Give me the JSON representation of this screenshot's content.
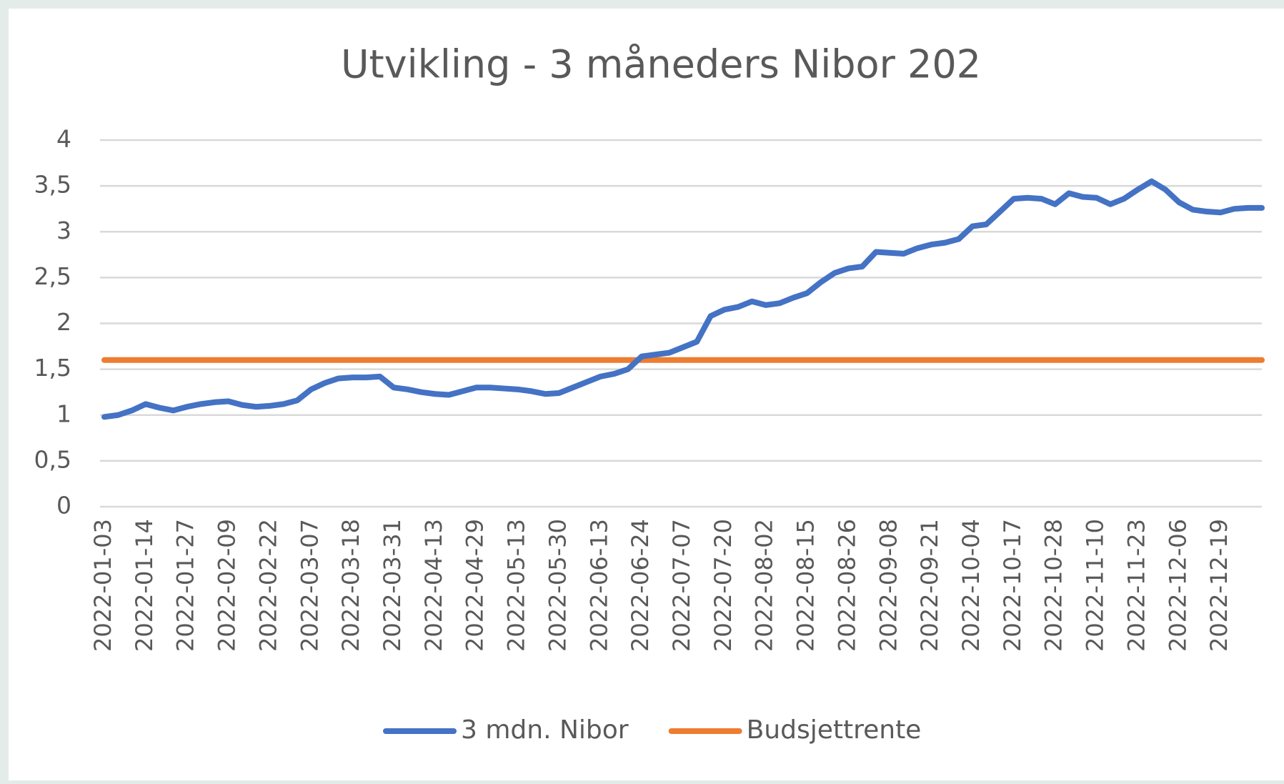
{
  "chart_data": {
    "type": "line",
    "title": "Utvikling - 3 måneders Nibor 202",
    "categories": [
      "2022-01-03",
      null,
      null,
      "2022-01-14",
      null,
      null,
      "2022-01-27",
      null,
      null,
      "2022-02-09",
      null,
      null,
      "2022-02-22",
      null,
      null,
      "2022-03-07",
      null,
      null,
      "2022-03-18",
      null,
      null,
      "2022-03-31",
      null,
      null,
      "2022-04-13",
      null,
      null,
      "2022-04-29",
      null,
      null,
      "2022-05-13",
      null,
      null,
      "2022-05-30",
      null,
      null,
      "2022-06-13",
      null,
      null,
      "2022-06-24",
      null,
      null,
      "2022-07-07",
      null,
      null,
      "2022-07-20",
      null,
      null,
      "2022-08-02",
      null,
      null,
      "2022-08-15",
      null,
      null,
      "2022-08-26",
      null,
      null,
      "2022-09-08",
      null,
      null,
      "2022-09-21",
      null,
      null,
      "2022-10-04",
      null,
      null,
      "2022-10-17",
      null,
      null,
      "2022-10-28",
      null,
      null,
      "2022-11-10",
      null,
      null,
      "2022-11-23",
      null,
      null,
      "2022-12-06",
      null,
      null,
      "2022-12-19",
      null,
      null,
      null
    ],
    "series": [
      {
        "name": "3 mdn. Nibor",
        "color": "#4472c4",
        "values": [
          0.98,
          1.0,
          1.05,
          1.12,
          1.08,
          1.05,
          1.09,
          1.12,
          1.14,
          1.15,
          1.11,
          1.09,
          1.1,
          1.12,
          1.16,
          1.28,
          1.35,
          1.4,
          1.41,
          1.41,
          1.42,
          1.3,
          1.28,
          1.25,
          1.23,
          1.22,
          1.26,
          1.3,
          1.3,
          1.29,
          1.28,
          1.26,
          1.23,
          1.24,
          1.3,
          1.36,
          1.42,
          1.45,
          1.5,
          1.64,
          1.66,
          1.68,
          1.74,
          1.8,
          2.08,
          2.15,
          2.18,
          2.24,
          2.2,
          2.22,
          2.28,
          2.33,
          2.45,
          2.55,
          2.6,
          2.62,
          2.78,
          2.77,
          2.76,
          2.82,
          2.86,
          2.88,
          2.92,
          3.06,
          3.08,
          3.22,
          3.36,
          3.37,
          3.36,
          3.3,
          3.42,
          3.38,
          3.37,
          3.3,
          3.36,
          3.46,
          3.55,
          3.46,
          3.32,
          3.24,
          3.22,
          3.21,
          3.25,
          3.26,
          3.26
        ]
      },
      {
        "name": "Budsjettrente",
        "color": "#ed7d31",
        "values": [
          1.6,
          1.6,
          1.6,
          1.6,
          1.6,
          1.6,
          1.6,
          1.6,
          1.6,
          1.6,
          1.6,
          1.6,
          1.6,
          1.6,
          1.6,
          1.6,
          1.6,
          1.6,
          1.6,
          1.6,
          1.6,
          1.6,
          1.6,
          1.6,
          1.6,
          1.6,
          1.6,
          1.6,
          1.6,
          1.6,
          1.6,
          1.6,
          1.6,
          1.6,
          1.6,
          1.6,
          1.6,
          1.6,
          1.6,
          1.6,
          1.6,
          1.6,
          1.6,
          1.6,
          1.6,
          1.6,
          1.6,
          1.6,
          1.6,
          1.6,
          1.6,
          1.6,
          1.6,
          1.6,
          1.6,
          1.6,
          1.6,
          1.6,
          1.6,
          1.6,
          1.6,
          1.6,
          1.6,
          1.6,
          1.6,
          1.6,
          1.6,
          1.6,
          1.6,
          1.6,
          1.6,
          1.6,
          1.6,
          1.6,
          1.6,
          1.6,
          1.6,
          1.6,
          1.6,
          1.6,
          1.6,
          1.6,
          1.6,
          1.6,
          1.6
        ]
      }
    ],
    "ylim": [
      0,
      4
    ],
    "yticks": [
      0,
      {
        "value": 0.5,
        "label": "0,5"
      },
      1,
      {
        "value": 1.5,
        "label": "1,5"
      },
      2,
      {
        "value": 2.5,
        "label": "2,5"
      },
      3,
      {
        "value": 3.5,
        "label": "3,5"
      },
      4
    ],
    "grid": true
  }
}
